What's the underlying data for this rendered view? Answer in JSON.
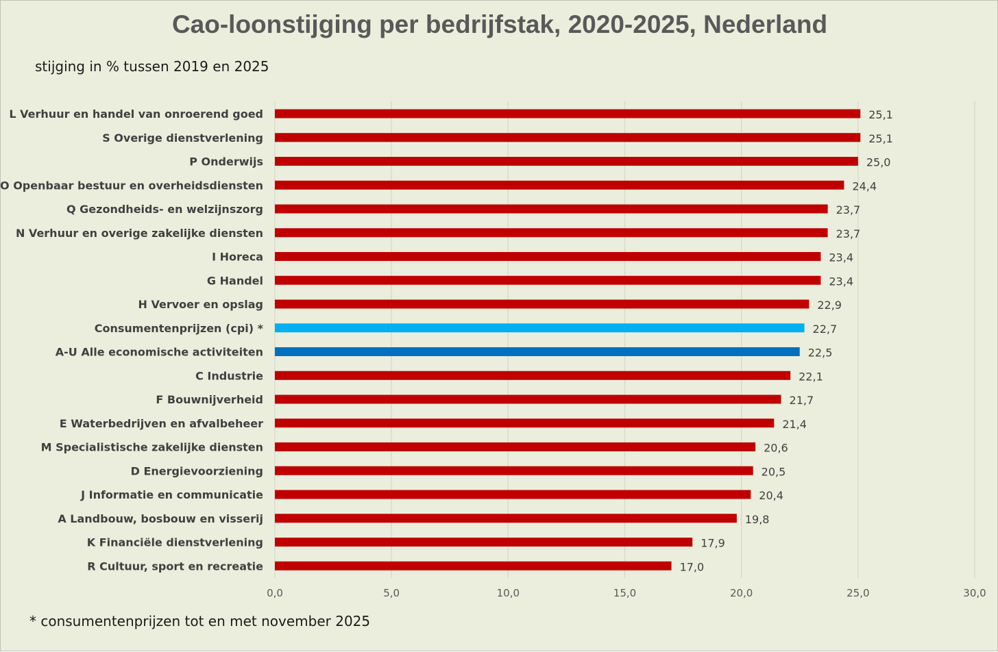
{
  "chart_data": {
    "type": "bar",
    "orientation": "horizontal",
    "title": "Cao-loonstijging per bedrijfstak, 2020-2025, Nederland",
    "subtitle": "stijging in % tussen 2019 en 2025",
    "footnote": "* consumentenprijzen tot en met november 2025",
    "xlabel": "",
    "ylabel": "",
    "xlim": [
      0,
      30
    ],
    "ticks": [
      0,
      5,
      10,
      15,
      20,
      25,
      30
    ],
    "tick_labels": [
      "0,0",
      "5,0",
      "10,0",
      "15,0",
      "20,0",
      "25,0",
      "30,0"
    ],
    "grid": true,
    "colors": {
      "default": "#c00000",
      "cpi": "#00b0f0",
      "total": "#0070c0",
      "grid": "#d4d7c8",
      "background": "#ebeedd"
    },
    "categories": [
      "L Verhuur en handel van onroerend goed",
      "S Overige dienstverlening",
      "P Onderwijs",
      "O Openbaar bestuur en overheidsdiensten",
      "Q Gezondheids- en welzijnszorg",
      "N Verhuur en overige zakelijke diensten",
      "I Horeca",
      "G Handel",
      "H Vervoer en opslag",
      "Consumentenprijzen (cpi) *",
      "A-U Alle economische activiteiten",
      "C Industrie",
      "F Bouwnijverheid",
      "E Waterbedrijven en afvalbeheer",
      "M Specialistische zakelijke diensten",
      "D Energievoorziening",
      "J Informatie en communicatie",
      "A Landbouw, bosbouw en visserij",
      "K Financiële dienstverlening",
      "R Cultuur, sport en recreatie"
    ],
    "values": [
      25.1,
      25.1,
      25.0,
      24.4,
      23.7,
      23.7,
      23.4,
      23.4,
      22.9,
      22.7,
      22.5,
      22.1,
      21.7,
      21.4,
      20.6,
      20.5,
      20.4,
      19.8,
      17.9,
      17.0
    ],
    "value_labels": [
      "25,1",
      "25,1",
      "25,0",
      "24,4",
      "23,7",
      "23,7",
      "23,4",
      "23,4",
      "22,9",
      "22,7",
      "22,5",
      "22,1",
      "21,7",
      "21,4",
      "20,6",
      "20,5",
      "20,4",
      "19,8",
      "17,9",
      "17,0"
    ],
    "series_kind": [
      "default",
      "default",
      "default",
      "default",
      "default",
      "default",
      "default",
      "default",
      "default",
      "cpi",
      "total",
      "default",
      "default",
      "default",
      "default",
      "default",
      "default",
      "default",
      "default",
      "default"
    ]
  }
}
